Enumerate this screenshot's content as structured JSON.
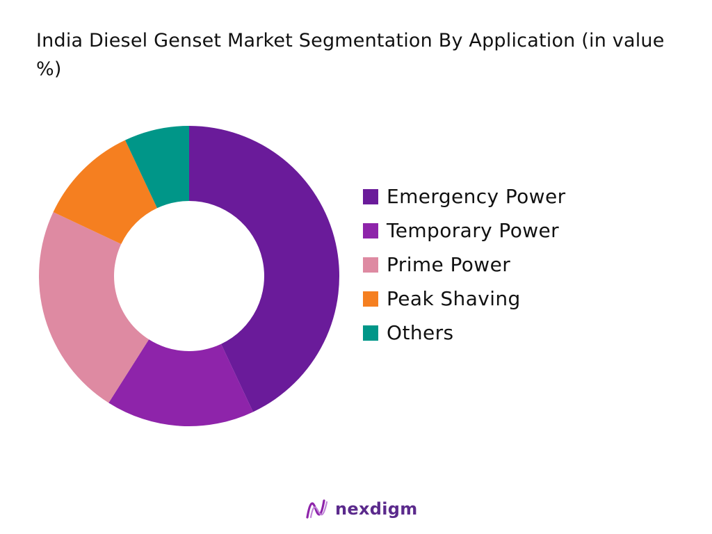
{
  "chart_data": {
    "type": "pie",
    "title": "India Diesel Genset Market Segmentation By Application (in value %)",
    "categories": [
      "Emergency Power",
      "Temporary Power",
      "Prime Power",
      "Peak Shaving",
      "Others"
    ],
    "values": [
      43,
      16,
      23,
      11,
      7
    ],
    "colors": [
      "#6a1b9a",
      "#8e24aa",
      "#de8aa2",
      "#f57f20",
      "#009688"
    ],
    "legend": "right",
    "donut": true
  },
  "logo": {
    "text": "nexdigm",
    "icon": "nexdigm-wave-icon"
  }
}
